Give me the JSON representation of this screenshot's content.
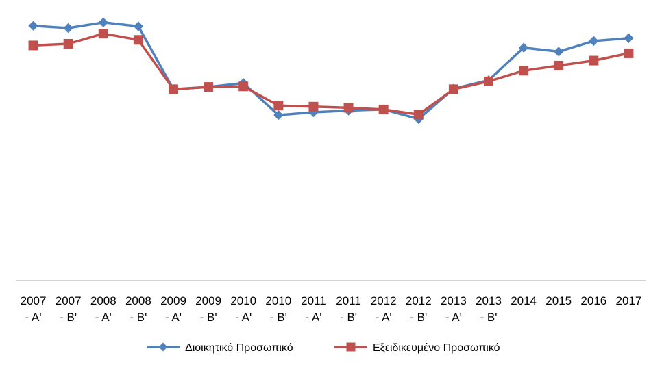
{
  "chart_data": {
    "type": "line",
    "title": "",
    "xlabel": "",
    "ylabel": "",
    "y_axis_visible": false,
    "grid": false,
    "legend_position": "bottom",
    "categories": [
      [
        "2007",
        "- A'"
      ],
      [
        "2007",
        "- B'"
      ],
      [
        "2008",
        "- A'"
      ],
      [
        "2008",
        "- B'"
      ],
      [
        "2009",
        "- A'"
      ],
      [
        "2009",
        "- B'"
      ],
      [
        "2010",
        "- A'"
      ],
      [
        "2010",
        "- B'"
      ],
      [
        "2011",
        "- A'"
      ],
      [
        "2011",
        "- B'"
      ],
      [
        "2012",
        "- A'"
      ],
      [
        "2012",
        "- B'"
      ],
      [
        "2013",
        "- A'"
      ],
      [
        "2013",
        "- B'"
      ],
      [
        "2014",
        ""
      ],
      [
        "2015",
        ""
      ],
      [
        "2016",
        ""
      ],
      [
        "2017",
        ""
      ]
    ],
    "ylim": [
      0,
      100
    ],
    "series": [
      {
        "name": "Διοικητικό Προσωπικό",
        "color": "#4F81BD",
        "marker": "diamond",
        "values": [
          90.8,
          90.0,
          92.0,
          90.6,
          68.2,
          69.0,
          70.4,
          59.0,
          60.0,
          60.6,
          61.0,
          57.6,
          68.4,
          71.4,
          83.0,
          81.6,
          85.4,
          86.4
        ]
      },
      {
        "name": "Εξειδικευμένο Προσωπικό",
        "color": "#C0504D",
        "marker": "square",
        "values": [
          83.8,
          84.4,
          88.0,
          85.8,
          68.2,
          69.0,
          69.2,
          62.4,
          62.0,
          61.6,
          61.0,
          59.2,
          68.2,
          71.0,
          74.8,
          76.6,
          78.4,
          81.0
        ]
      }
    ]
  }
}
